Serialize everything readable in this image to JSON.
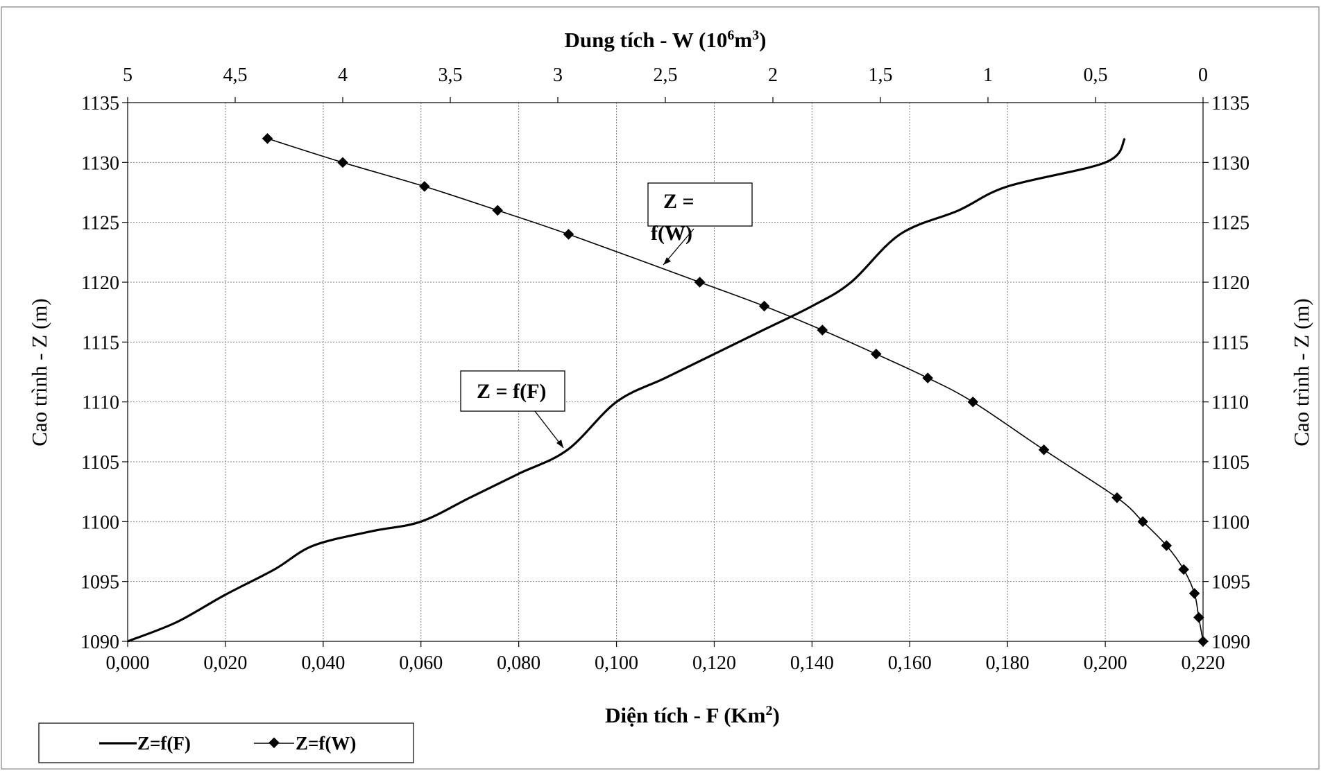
{
  "chart_data": {
    "type": "line",
    "top_axis": {
      "label_prefix": "Dung tích - W (10",
      "label_sup1": "6",
      "label_mid": "m",
      "label_sup2": "3",
      "label_suffix": ")",
      "range": [
        5,
        0
      ],
      "ticks": [
        "5",
        "4,5",
        "4",
        "3,5",
        "3",
        "2,5",
        "2",
        "1,5",
        "1",
        "0,5",
        "0"
      ]
    },
    "bottom_axis": {
      "label_prefix": "Diện tích - F (Km",
      "label_sup": "2",
      "label_suffix": ")",
      "range": [
        0,
        0.22
      ],
      "ticks": [
        "0,000",
        "0,020",
        "0,040",
        "0,060",
        "0,080",
        "0,100",
        "0,120",
        "0,140",
        "0,160",
        "0,180",
        "0,200",
        "0,220"
      ]
    },
    "left_axis": {
      "label": "Cao trình - Z (m)",
      "range": [
        1090,
        1135
      ],
      "ticks": [
        "1090",
        "1095",
        "1100",
        "1105",
        "1110",
        "1115",
        "1120",
        "1125",
        "1130",
        "1135"
      ]
    },
    "right_axis": {
      "label": "Cao trình - Z (m)",
      "range": [
        1090,
        1135
      ],
      "ticks": [
        "1090",
        "1095",
        "1100",
        "1105",
        "1110",
        "1115",
        "1120",
        "1125",
        "1130",
        "1135"
      ]
    },
    "grid": true,
    "series": [
      {
        "name": "Z=f(F)",
        "axis": "bottom",
        "markers": false,
        "points": [
          [
            0.0,
            1090
          ],
          [
            0.01,
            1091.6
          ],
          [
            0.02,
            1093.9
          ],
          [
            0.03,
            1096.0
          ],
          [
            0.038,
            1098.0
          ],
          [
            0.05,
            1099.2
          ],
          [
            0.06,
            1100.0
          ],
          [
            0.07,
            1102.0
          ],
          [
            0.08,
            1104.0
          ],
          [
            0.09,
            1106.0
          ],
          [
            0.1,
            1110.0
          ],
          [
            0.11,
            1112.0
          ],
          [
            0.12,
            1114.0
          ],
          [
            0.13,
            1116.0
          ],
          [
            0.14,
            1118.0
          ],
          [
            0.148,
            1120.0
          ],
          [
            0.158,
            1124.0
          ],
          [
            0.17,
            1126.0
          ],
          [
            0.18,
            1128.0
          ],
          [
            0.2,
            1130.0
          ],
          [
            0.204,
            1132.0
          ]
        ]
      },
      {
        "name": "Z=f(W)",
        "axis": "top",
        "markers": true,
        "points": [
          [
            4.35,
            1132
          ],
          [
            4.0,
            1130
          ],
          [
            3.62,
            1128
          ],
          [
            3.28,
            1126
          ],
          [
            2.95,
            1124
          ],
          [
            2.34,
            1120
          ],
          [
            2.04,
            1118
          ],
          [
            1.77,
            1116
          ],
          [
            1.52,
            1114
          ],
          [
            1.28,
            1112
          ],
          [
            1.07,
            1110
          ],
          [
            0.74,
            1106
          ],
          [
            0.4,
            1102
          ],
          [
            0.28,
            1100
          ],
          [
            0.17,
            1098
          ],
          [
            0.09,
            1096
          ],
          [
            0.04,
            1094
          ],
          [
            0.02,
            1092
          ],
          [
            0.0,
            1090
          ]
        ]
      }
    ],
    "annotations": [
      {
        "line1": "Z =",
        "line2": "f(W)",
        "series": "Z=f(W)"
      },
      {
        "line1": "Z = f(F)",
        "series": "Z=f(F)"
      }
    ],
    "legend": {
      "position": "bottom-left",
      "items": [
        "Z=f(F)",
        "Z=f(W)"
      ]
    }
  }
}
